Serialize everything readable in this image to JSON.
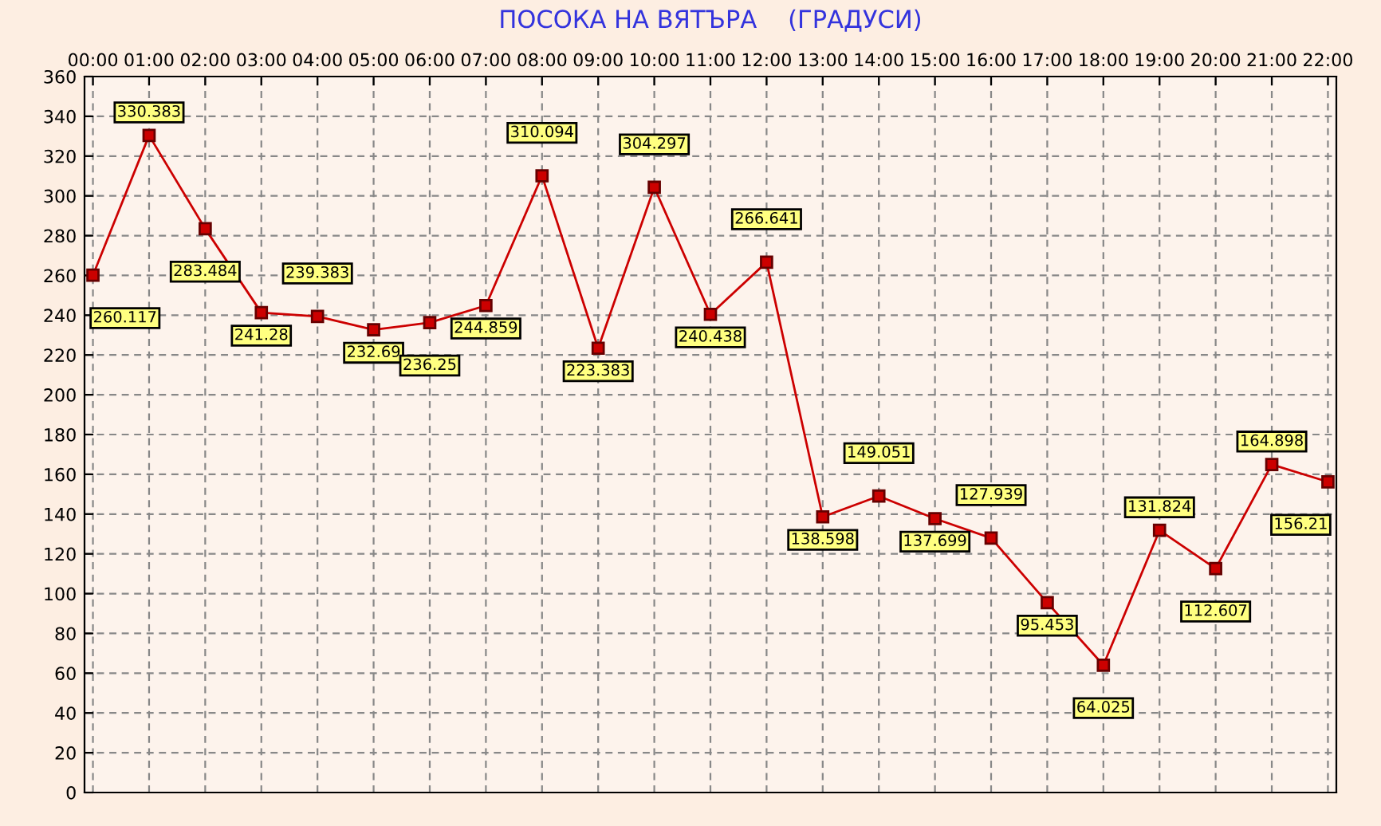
{
  "chart_data": {
    "type": "line",
    "title": "ПОСОКА НА ВЯТЪРА    (ГРАДУСИ)",
    "categories": [
      "00:00",
      "01:00",
      "02:00",
      "03:00",
      "04:00",
      "05:00",
      "06:00",
      "07:00",
      "08:00",
      "09:00",
      "10:00",
      "11:00",
      "12:00",
      "13:00",
      "14:00",
      "15:00",
      "16:00",
      "17:00",
      "18:00",
      "19:00",
      "20:00",
      "21:00",
      "22:00"
    ],
    "series": [
      {
        "color": "#cc0000",
        "values": [
          260.117,
          330.383,
          283.484,
          241.28,
          239.383,
          232.69,
          236.25,
          244.859,
          310.094,
          223.383,
          304.297,
          240.438,
          266.641,
          138.598,
          149.051,
          137.699,
          127.939,
          95.453,
          64.025,
          131.824,
          112.607,
          164.898,
          156.21
        ]
      }
    ],
    "ylim": [
      0,
      360
    ],
    "yticks": [
      0,
      20,
      40,
      60,
      80,
      100,
      120,
      140,
      160,
      180,
      200,
      220,
      240,
      260,
      280,
      300,
      320,
      340,
      360
    ],
    "grid": true,
    "marker": "square",
    "line_style": "solid",
    "data_labels": true
  }
}
